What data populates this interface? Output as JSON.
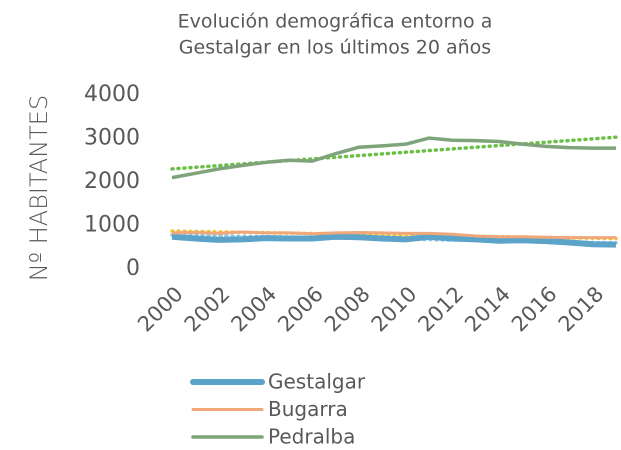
{
  "chart_data": {
    "type": "line",
    "title": [
      "Evolución demográfica entorno a",
      "Gestalgar en los últimos 20 años"
    ],
    "y_label": "Nº HABITANTES",
    "x": [
      2000,
      2001,
      2002,
      2003,
      2004,
      2005,
      2006,
      2007,
      2008,
      2009,
      2010,
      2011,
      2012,
      2013,
      2014,
      2015,
      2016,
      2017,
      2018,
      2019
    ],
    "xlim": [
      2000,
      2019
    ],
    "xticks": [
      2000,
      2002,
      2004,
      2006,
      2008,
      2010,
      2012,
      2014,
      2016,
      2018
    ],
    "ylim": [
      0,
      4000
    ],
    "yticks": [
      0,
      1000,
      2000,
      3000,
      4000
    ],
    "grid": false,
    "legend": "bottom",
    "series": [
      {
        "name": "Gestalgar",
        "color": "#5ba3c9",
        "width": 6,
        "values": [
          740,
          700,
          670,
          680,
          710,
          700,
          700,
          740,
          730,
          700,
          680,
          740,
          700,
          680,
          650,
          660,
          640,
          610,
          570,
          560
        ],
        "trend": {
          "color": "#8cc4e6",
          "values": [
            780,
            600
          ]
        }
      },
      {
        "name": "Bugarra",
        "color": "#f0a77a",
        "width": 3,
        "values": [
          830,
          840,
          820,
          850,
          830,
          830,
          810,
          830,
          840,
          830,
          820,
          820,
          800,
          760,
          740,
          740,
          730,
          720,
          720,
          720
        ],
        "trend": {
          "color": "#f2c12e",
          "values": [
            870,
            700
          ]
        }
      },
      {
        "name": "Pedralba",
        "color": "#7fa37a",
        "width": 3.5,
        "values": [
          2100,
          2200,
          2300,
          2380,
          2450,
          2500,
          2480,
          2650,
          2800,
          2830,
          2870,
          3010,
          2960,
          2950,
          2930,
          2870,
          2820,
          2790,
          2780,
          2780
        ],
        "trend": {
          "color": "#6abf45",
          "values": [
            2300,
            3030
          ]
        }
      }
    ]
  }
}
